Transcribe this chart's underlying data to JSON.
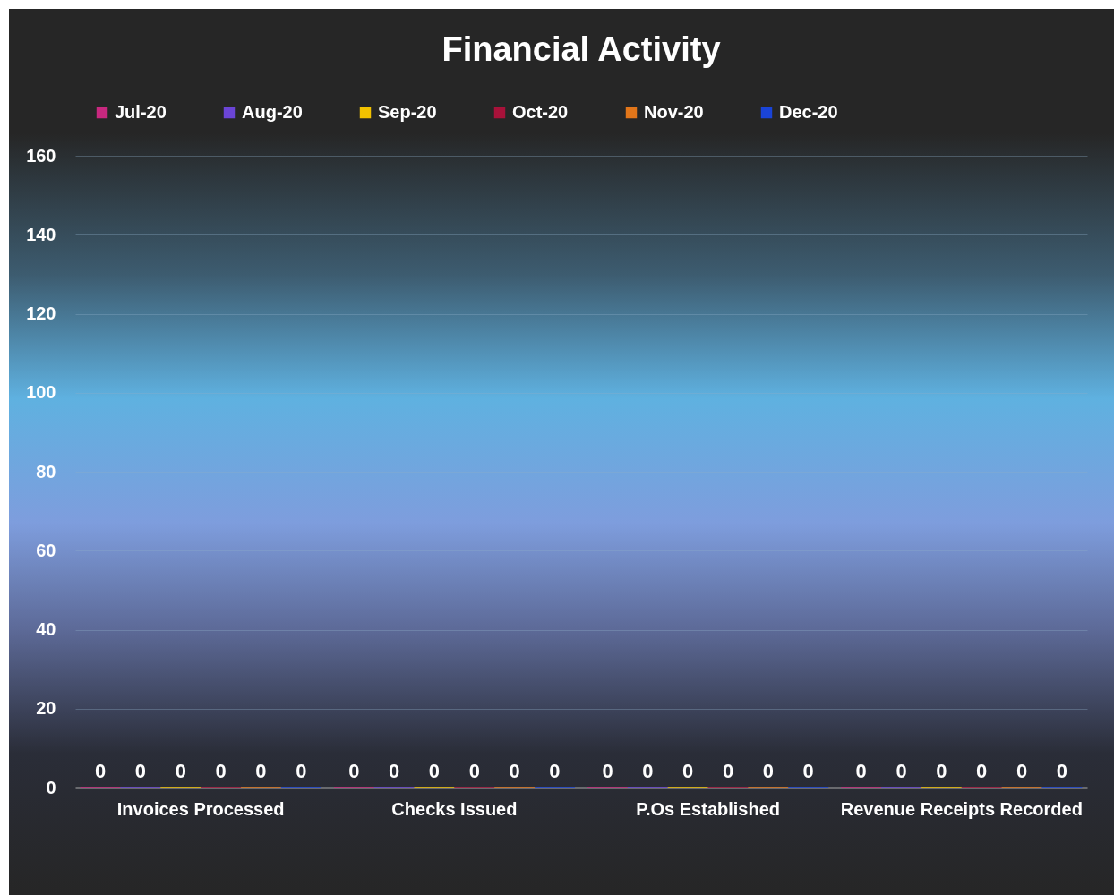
{
  "chart_data": {
    "type": "bar",
    "title": "Financial Activity",
    "categories": [
      "Invoices Processed",
      "Checks Issued",
      "P.Os Established",
      "Revenue Receipts Recorded"
    ],
    "series": [
      {
        "name": "Jul-20",
        "color": "#c8287f",
        "values": [
          0,
          0,
          0,
          0
        ]
      },
      {
        "name": "Aug-20",
        "color": "#6b45d6",
        "values": [
          0,
          0,
          0,
          0
        ]
      },
      {
        "name": "Sep-20",
        "color": "#f2c200",
        "values": [
          0,
          0,
          0,
          0
        ]
      },
      {
        "name": "Oct-20",
        "color": "#a8123a",
        "values": [
          0,
          0,
          0,
          0
        ]
      },
      {
        "name": "Nov-20",
        "color": "#e2761a",
        "values": [
          0,
          0,
          0,
          0
        ]
      },
      {
        "name": "Dec-20",
        "color": "#1a44d8",
        "values": [
          0,
          0,
          0,
          0
        ]
      }
    ],
    "ylim": [
      0,
      160
    ],
    "yticks": [
      0,
      20,
      40,
      60,
      80,
      100,
      120,
      140,
      160
    ],
    "grid": "y",
    "legend": "top",
    "data_labels": true
  }
}
